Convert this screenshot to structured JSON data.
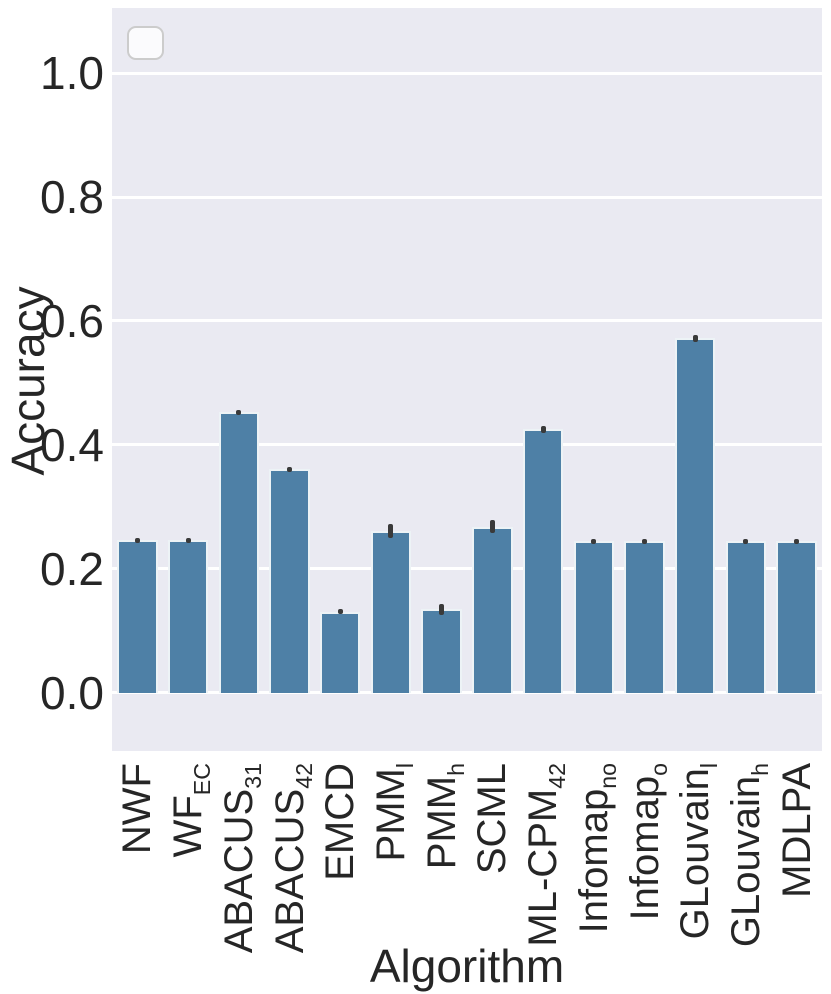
{
  "chart_data": {
    "type": "bar",
    "title": "",
    "xlabel": "Algorithm",
    "ylabel": "Accuracy",
    "categories": [
      {
        "main": "NWF",
        "sub": ""
      },
      {
        "main": "WF",
        "sub": "EC"
      },
      {
        "main": "ABACUS",
        "sub": "31"
      },
      {
        "main": "ABACUS",
        "sub": "42"
      },
      {
        "main": "EMCD",
        "sub": ""
      },
      {
        "main": "PMM",
        "sub": "l"
      },
      {
        "main": "PMM",
        "sub": "h"
      },
      {
        "main": "SCML",
        "sub": ""
      },
      {
        "main": "ML-CPM",
        "sub": "42"
      },
      {
        "main": "Infomap",
        "sub": "no"
      },
      {
        "main": "Infomap",
        "sub": "o"
      },
      {
        "main": "GLouvain",
        "sub": "l"
      },
      {
        "main": "GLouvain",
        "sub": "h"
      },
      {
        "main": "MDLPA",
        "sub": ""
      }
    ],
    "values": [
      0.246,
      0.246,
      0.453,
      0.361,
      0.131,
      0.261,
      0.135,
      0.268,
      0.425,
      0.245,
      0.245,
      0.572,
      0.245,
      0.245
    ],
    "errors": [
      0.004,
      0.004,
      0.004,
      0.004,
      0.004,
      0.012,
      0.009,
      0.01,
      0.006,
      0.003,
      0.003,
      0.006,
      0.003,
      0.003
    ],
    "yticks": [
      0.0,
      0.2,
      0.4,
      0.6,
      0.8,
      1.0
    ],
    "ytick_labels": [
      "0.0",
      "0.2",
      "0.4",
      "0.6",
      "0.8",
      "1.0"
    ],
    "ylim": [
      -0.094,
      1.105
    ],
    "grid": "horizontal",
    "legend": "empty-box-top-left",
    "colors": {
      "bar": "#4E80A6",
      "error": "#3A3A3A",
      "plot_background": "#EAEAF2",
      "gridline": "#FFFFFF",
      "text": "#262626",
      "legend_border": "#CCCCCC"
    }
  }
}
